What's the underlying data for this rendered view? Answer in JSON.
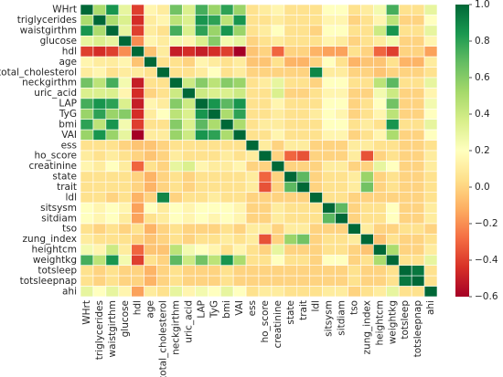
{
  "chart_data": {
    "type": "heatmap",
    "title": "",
    "xlabel": "",
    "ylabel": "",
    "labels": [
      "WHrt",
      "triglycerides",
      "waistgirthm",
      "glucose",
      "hdl",
      "age",
      "total_cholesterol",
      "neckgirthm",
      "uric_acid",
      "LAP",
      "TyG",
      "bmi",
      "VAI",
      "ess",
      "ho_score",
      "creatinine",
      "state",
      "trait",
      "ldl",
      "sitsysm",
      "sitdiam",
      "tso",
      "zung_index",
      "heightcm",
      "weightkg",
      "totsleep",
      "totsleepnap",
      "ahi"
    ],
    "colorbar": {
      "min": -0.6,
      "max": 1.0,
      "ticks": [
        1.0,
        0.8,
        0.6,
        0.4,
        0.2,
        0.0,
        -0.2,
        -0.4,
        -0.6
      ],
      "tick_labels": [
        "1.0",
        "0.8",
        "0.6",
        "0.4",
        "0.2",
        "0.0",
        "−0.2",
        "−0.4",
        "−0.6"
      ],
      "colormap": "RdYlGn"
    },
    "grid": "white cell borders",
    "values": [
      [
        1,
        0.5,
        0.85,
        0.3,
        -0.4,
        0.15,
        0.1,
        0.65,
        0.35,
        0.75,
        0.55,
        0.8,
        0.55,
        0.05,
        0.1,
        0.15,
        0.05,
        0.05,
        0.05,
        0.2,
        0.2,
        0.05,
        0.1,
        0.25,
        0.75,
        0.05,
        0.05,
        0.3
      ],
      [
        0.5,
        1,
        0.5,
        0.35,
        -0.45,
        0.1,
        0.15,
        0.45,
        0.35,
        0.85,
        0.8,
        0.45,
        0.85,
        0.05,
        0.05,
        0.1,
        0.05,
        0.05,
        0.05,
        0.15,
        0.15,
        0.0,
        0.05,
        0.15,
        0.45,
        0.0,
        0.0,
        0.2
      ],
      [
        0.85,
        0.5,
        1,
        0.3,
        -0.4,
        0.1,
        0.05,
        0.75,
        0.35,
        0.8,
        0.55,
        0.85,
        0.55,
        0.05,
        0.1,
        0.2,
        0.05,
        0.05,
        0.0,
        0.2,
        0.2,
        0.05,
        0.05,
        0.4,
        0.85,
        0.05,
        0.05,
        0.3
      ],
      [
        0.3,
        0.35,
        0.3,
        1,
        -0.2,
        0.15,
        0.1,
        0.25,
        0.15,
        0.35,
        0.6,
        0.25,
        0.3,
        0.0,
        0.05,
        0.1,
        0.05,
        0.05,
        0.05,
        0.15,
        0.1,
        0.0,
        0.05,
        0.1,
        0.25,
        0.0,
        0.0,
        0.15
      ],
      [
        -0.4,
        -0.45,
        -0.4,
        -0.2,
        1,
        -0.05,
        0.1,
        -0.5,
        -0.45,
        -0.5,
        -0.45,
        -0.4,
        -0.6,
        -0.05,
        0.0,
        -0.3,
        0.0,
        0.0,
        -0.1,
        -0.15,
        -0.15,
        0.05,
        0.0,
        -0.3,
        -0.4,
        0.0,
        0.0,
        -0.15
      ],
      [
        0.15,
        0.1,
        0.1,
        0.15,
        -0.05,
        1,
        0.05,
        0.05,
        0.0,
        0.15,
        0.1,
        0.05,
        0.1,
        -0.05,
        -0.05,
        0.05,
        -0.1,
        -0.1,
        0.0,
        0.2,
        0.05,
        -0.1,
        -0.05,
        -0.05,
        0.05,
        -0.1,
        -0.1,
        0.1
      ],
      [
        0.1,
        0.15,
        0.05,
        0.1,
        0.1,
        0.05,
        1,
        0.05,
        0.05,
        0.1,
        0.2,
        0.05,
        0.1,
        0.0,
        0.0,
        0.0,
        0.0,
        0.0,
        0.9,
        0.1,
        0.1,
        0.0,
        0.0,
        -0.05,
        0.0,
        0.0,
        0.0,
        0.05
      ],
      [
        0.65,
        0.45,
        0.75,
        0.25,
        -0.5,
        0.05,
        0.05,
        1,
        0.4,
        0.6,
        0.45,
        0.6,
        0.55,
        0.05,
        0.1,
        0.3,
        0.05,
        0.05,
        0.0,
        0.2,
        0.2,
        0.05,
        0.05,
        0.45,
        0.7,
        0.05,
        0.05,
        0.3
      ],
      [
        0.35,
        0.35,
        0.35,
        0.15,
        -0.45,
        0.0,
        0.05,
        0.4,
        1,
        0.4,
        0.35,
        0.35,
        0.4,
        0.05,
        0.05,
        0.35,
        0.0,
        0.0,
        0.05,
        0.15,
        0.15,
        0.0,
        0.0,
        0.25,
        0.4,
        0.0,
        0.0,
        0.15
      ],
      [
        0.75,
        0.85,
        0.8,
        0.35,
        -0.5,
        0.15,
        0.1,
        0.6,
        0.4,
        1,
        0.85,
        0.7,
        0.85,
        0.05,
        0.05,
        0.15,
        0.05,
        0.05,
        0.05,
        0.2,
        0.2,
        0.0,
        0.05,
        0.2,
        0.65,
        0.0,
        0.0,
        0.25
      ],
      [
        0.55,
        0.8,
        0.55,
        0.6,
        -0.45,
        0.1,
        0.2,
        0.45,
        0.35,
        0.85,
        1,
        0.5,
        0.8,
        0.05,
        0.05,
        0.1,
        0.05,
        0.05,
        0.1,
        0.2,
        0.15,
        0.0,
        0.05,
        0.15,
        0.45,
        0.0,
        0.0,
        0.2
      ],
      [
        0.8,
        0.45,
        0.85,
        0.25,
        -0.4,
        0.05,
        0.05,
        0.6,
        0.35,
        0.7,
        0.5,
        1,
        0.5,
        0.05,
        0.1,
        0.1,
        0.05,
        0.05,
        0.05,
        0.2,
        0.2,
        0.05,
        0.1,
        0.05,
        0.85,
        0.05,
        0.05,
        0.3
      ],
      [
        0.55,
        0.85,
        0.55,
        0.3,
        -0.6,
        0.1,
        0.1,
        0.55,
        0.4,
        0.85,
        0.8,
        0.5,
        1,
        0.05,
        0.05,
        0.15,
        0.05,
        0.05,
        0.05,
        0.15,
        0.15,
        0.0,
        0.05,
        0.15,
        0.5,
        0.0,
        0.0,
        0.2
      ],
      [
        0.05,
        0.05,
        0.05,
        0.0,
        -0.05,
        -0.05,
        0.0,
        0.05,
        0.05,
        0.05,
        0.05,
        0.05,
        0.05,
        1,
        0.1,
        0.0,
        0.1,
        0.1,
        0.0,
        0.0,
        0.0,
        0.1,
        0.1,
        0.05,
        0.05,
        0.0,
        0.0,
        0.05
      ],
      [
        0.1,
        0.05,
        0.1,
        0.05,
        0.0,
        -0.05,
        0.0,
        0.1,
        0.05,
        0.05,
        0.05,
        0.1,
        0.05,
        0.1,
        1,
        0.0,
        -0.3,
        -0.35,
        0.0,
        0.0,
        0.0,
        0.1,
        -0.35,
        0.0,
        0.05,
        0.0,
        0.0,
        0.1
      ],
      [
        0.15,
        0.1,
        0.2,
        0.1,
        -0.3,
        0.05,
        0.0,
        0.3,
        0.35,
        0.15,
        0.1,
        0.1,
        0.15,
        0.0,
        0.0,
        1,
        0.0,
        0.0,
        0.0,
        0.1,
        0.1,
        0.0,
        0.0,
        0.3,
        0.2,
        0.0,
        0.0,
        0.1
      ],
      [
        0.05,
        0.05,
        0.05,
        0.05,
        0.0,
        -0.1,
        0.0,
        0.05,
        0.0,
        0.05,
        0.05,
        0.05,
        0.05,
        0.1,
        -0.3,
        0.0,
        1,
        0.7,
        0.0,
        0.05,
        0.05,
        0.1,
        0.55,
        0.0,
        0.05,
        0.0,
        0.0,
        0.05
      ],
      [
        0.05,
        0.05,
        0.05,
        0.05,
        0.0,
        -0.1,
        0.0,
        0.05,
        0.0,
        0.05,
        0.05,
        0.05,
        0.05,
        0.1,
        -0.35,
        0.0,
        0.7,
        1,
        0.0,
        0.05,
        0.05,
        0.1,
        0.65,
        0.0,
        0.05,
        0.0,
        0.0,
        0.05
      ],
      [
        0.05,
        0.05,
        0.0,
        0.05,
        -0.1,
        0.0,
        0.9,
        0.0,
        0.05,
        0.05,
        0.1,
        0.05,
        0.05,
        0.0,
        0.0,
        0.0,
        0.0,
        0.0,
        1,
        0.05,
        0.05,
        0.0,
        0.0,
        0.0,
        0.0,
        0.0,
        0.0,
        0.05
      ],
      [
        0.2,
        0.15,
        0.2,
        0.15,
        -0.15,
        0.2,
        0.1,
        0.2,
        0.15,
        0.2,
        0.2,
        0.2,
        0.15,
        0.0,
        0.0,
        0.1,
        0.05,
        0.05,
        0.05,
        1,
        0.7,
        0.0,
        0.05,
        0.05,
        0.2,
        0.0,
        0.0,
        0.1
      ],
      [
        0.2,
        0.15,
        0.2,
        0.1,
        -0.15,
        0.05,
        0.1,
        0.2,
        0.15,
        0.2,
        0.15,
        0.2,
        0.15,
        0.0,
        0.0,
        0.1,
        0.05,
        0.05,
        0.05,
        0.7,
        1,
        0.0,
        0.05,
        0.05,
        0.2,
        0.0,
        0.0,
        0.1
      ],
      [
        0.05,
        0.0,
        0.05,
        0.0,
        0.05,
        -0.1,
        0.0,
        0.05,
        0.0,
        0.0,
        0.0,
        0.05,
        0.0,
        0.1,
        0.1,
        0.0,
        0.1,
        0.1,
        0.0,
        0.0,
        0.0,
        1,
        0.1,
        0.0,
        0.0,
        0.05,
        0.05,
        0.0
      ],
      [
        0.1,
        0.05,
        0.05,
        0.05,
        0.0,
        -0.05,
        0.0,
        0.05,
        0.0,
        0.05,
        0.05,
        0.1,
        0.05,
        0.1,
        -0.35,
        0.0,
        0.55,
        0.65,
        0.0,
        0.05,
        0.05,
        0.1,
        1,
        -0.05,
        0.05,
        0.0,
        0.0,
        0.05
      ],
      [
        0.25,
        0.15,
        0.4,
        0.1,
        -0.3,
        -0.05,
        -0.05,
        0.45,
        0.25,
        0.2,
        0.15,
        0.05,
        0.15,
        0.05,
        0.0,
        0.3,
        0.0,
        0.0,
        0.0,
        0.05,
        0.05,
        0.0,
        -0.05,
        1,
        0.5,
        0.0,
        0.0,
        0.1
      ],
      [
        0.75,
        0.45,
        0.85,
        0.25,
        -0.4,
        0.05,
        0.0,
        0.7,
        0.4,
        0.65,
        0.45,
        0.85,
        0.5,
        0.05,
        0.05,
        0.2,
        0.05,
        0.05,
        0.0,
        0.2,
        0.2,
        0.0,
        0.05,
        0.5,
        1,
        0.05,
        0.05,
        0.3
      ],
      [
        0.05,
        0.0,
        0.05,
        0.0,
        0.0,
        -0.1,
        0.0,
        0.05,
        0.0,
        0.0,
        0.0,
        0.05,
        0.0,
        0.0,
        0.0,
        0.0,
        0.0,
        0.0,
        0.0,
        0.0,
        0.0,
        0.05,
        0.0,
        0.0,
        0.05,
        1,
        0.95,
        0.05
      ],
      [
        0.05,
        0.0,
        0.05,
        0.0,
        0.0,
        -0.1,
        0.0,
        0.05,
        0.0,
        0.0,
        0.0,
        0.05,
        0.0,
        0.0,
        0.0,
        0.0,
        0.0,
        0.0,
        0.0,
        0.0,
        0.0,
        0.05,
        0.0,
        0.0,
        0.05,
        0.95,
        1,
        0.05
      ],
      [
        0.3,
        0.2,
        0.3,
        0.15,
        -0.15,
        0.1,
        0.05,
        0.3,
        0.15,
        0.25,
        0.2,
        0.3,
        0.2,
        0.05,
        0.1,
        0.1,
        0.05,
        0.05,
        0.05,
        0.1,
        0.1,
        0.0,
        0.05,
        0.1,
        0.3,
        0.05,
        0.05,
        1
      ]
    ]
  }
}
